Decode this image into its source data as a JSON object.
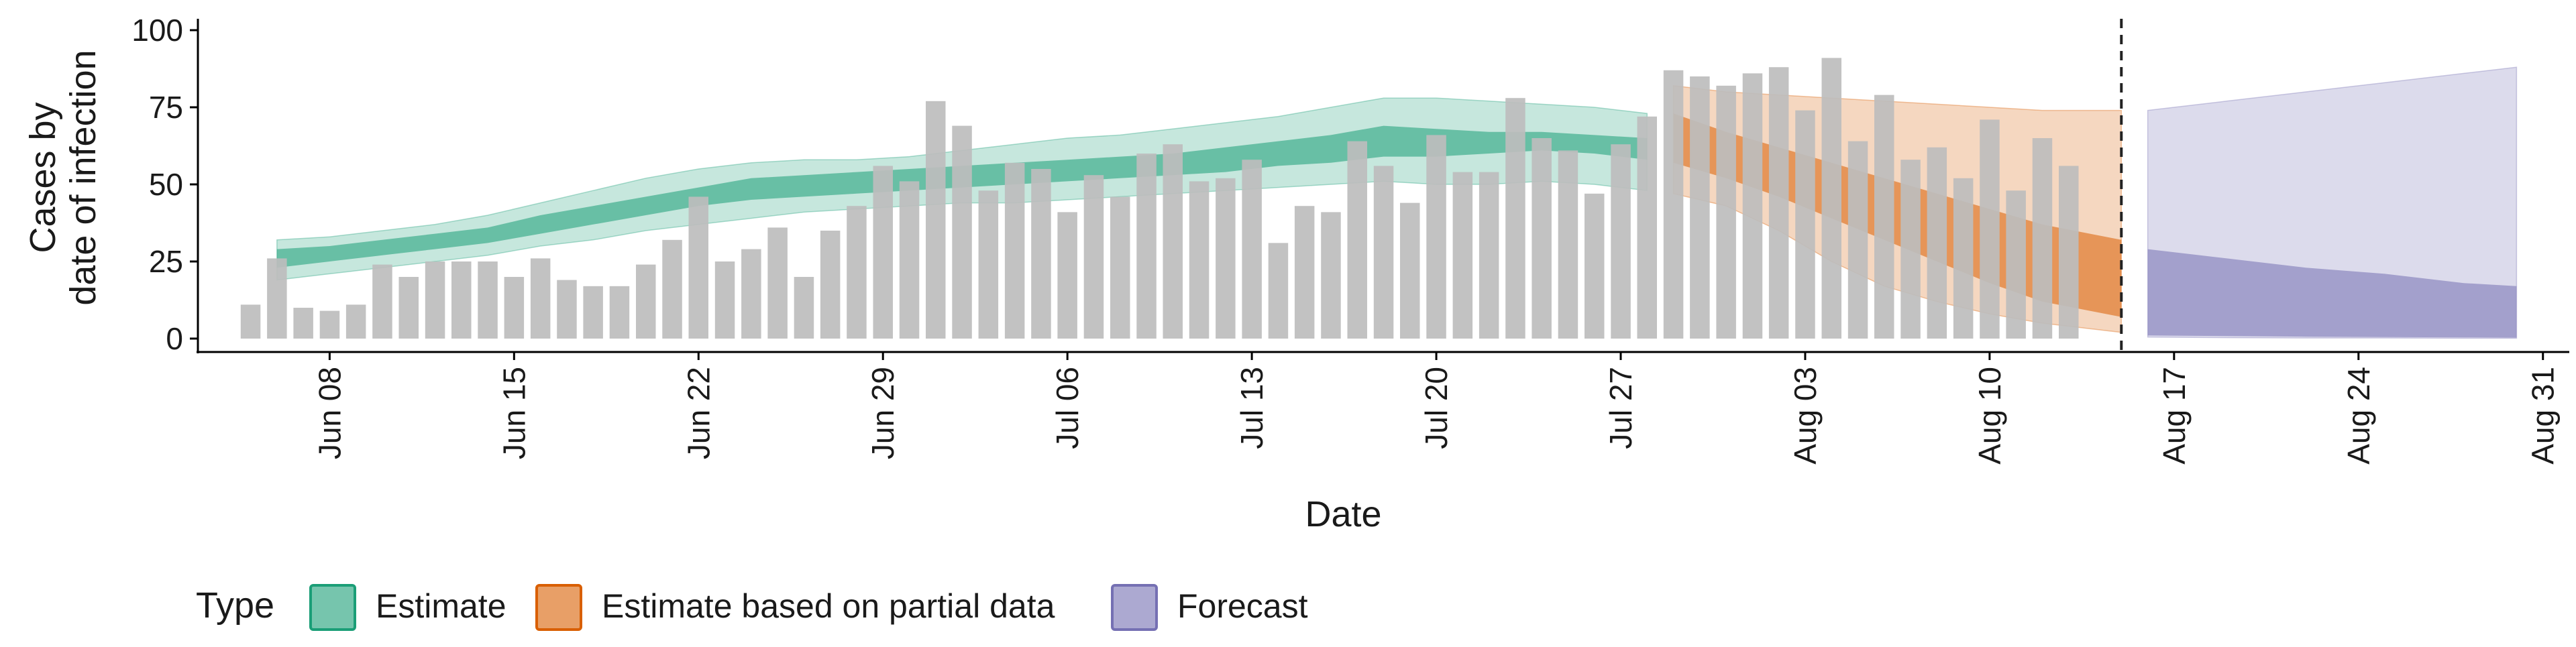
{
  "chart_data": {
    "type": "bar",
    "xlabel": "Date",
    "ylabel_lines": [
      "Cases by",
      "date of infection"
    ],
    "ylim": [
      0,
      100
    ],
    "y_ticks": [
      0,
      25,
      50,
      75,
      100
    ],
    "x_range": [
      "2021-06-03",
      "2021-09-01"
    ],
    "x_ticks": [
      {
        "date": "2021-06-08",
        "label": "Jun 08"
      },
      {
        "date": "2021-06-15",
        "label": "Jun 15"
      },
      {
        "date": "2021-06-22",
        "label": "Jun 22"
      },
      {
        "date": "2021-06-29",
        "label": "Jun 29"
      },
      {
        "date": "2021-07-06",
        "label": "Jul 06"
      },
      {
        "date": "2021-07-13",
        "label": "Jul 13"
      },
      {
        "date": "2021-07-20",
        "label": "Jul 20"
      },
      {
        "date": "2021-07-27",
        "label": "Jul 27"
      },
      {
        "date": "2021-08-03",
        "label": "Aug 03"
      },
      {
        "date": "2021-08-10",
        "label": "Aug 10"
      },
      {
        "date": "2021-08-17",
        "label": "Aug 17"
      },
      {
        "date": "2021-08-24",
        "label": "Aug 24"
      },
      {
        "date": "2021-08-31",
        "label": "Aug 31"
      }
    ],
    "forecast_line_date": "2021-08-15",
    "bars": {
      "start_date": "2021-06-05",
      "color": "#bdbdbd",
      "values": [
        11,
        26,
        10,
        9,
        11,
        24,
        20,
        25,
        25,
        25,
        20,
        26,
        19,
        17,
        17,
        24,
        32,
        46,
        25,
        29,
        36,
        20,
        35,
        43,
        56,
        51,
        77,
        69,
        48,
        57,
        55,
        41,
        53,
        46,
        60,
        63,
        51,
        52,
        58,
        31,
        43,
        41,
        64,
        56,
        44,
        66,
        54,
        54,
        78,
        65,
        61,
        47,
        63,
        72,
        87,
        85,
        82,
        86,
        88,
        74,
        91,
        64,
        79,
        58,
        62,
        52,
        71,
        48,
        65,
        56
      ]
    },
    "legend": {
      "title": "Type",
      "position": "bottom",
      "items": [
        {
          "label": "Estimate",
          "color": "#1b9e77"
        },
        {
          "label": "Estimate based on partial data",
          "color": "#d95f02"
        },
        {
          "label": "Forecast",
          "color": "#7570b3"
        }
      ]
    },
    "bands": [
      {
        "type": "Estimate",
        "color": "#1b9e77",
        "dates": [
          "2021-06-06",
          "2021-06-08",
          "2021-06-10",
          "2021-06-12",
          "2021-06-14",
          "2021-06-16",
          "2021-06-18",
          "2021-06-20",
          "2021-06-22",
          "2021-06-24",
          "2021-06-26",
          "2021-06-28",
          "2021-06-30",
          "2021-07-02",
          "2021-07-04",
          "2021-07-06",
          "2021-07-08",
          "2021-07-10",
          "2021-07-12",
          "2021-07-14",
          "2021-07-16",
          "2021-07-18",
          "2021-07-20",
          "2021-07-22",
          "2021-07-24",
          "2021-07-26",
          "2021-07-28"
        ],
        "lower90": [
          19,
          21,
          23,
          25,
          27,
          30,
          32,
          35,
          37,
          39,
          41,
          42,
          43,
          44,
          44,
          45,
          46,
          47,
          48,
          49,
          50,
          51,
          50,
          50,
          51,
          50,
          48
        ],
        "upper90": [
          32,
          33,
          35,
          37,
          40,
          44,
          48,
          52,
          55,
          57,
          58,
          58,
          59,
          61,
          63,
          65,
          66,
          68,
          70,
          72,
          75,
          78,
          78,
          77,
          76,
          75,
          73
        ],
        "lower50": [
          23,
          25,
          27,
          29,
          31,
          34,
          37,
          40,
          43,
          45,
          46,
          47,
          48,
          49,
          50,
          51,
          52,
          53,
          54,
          56,
          57,
          59,
          59,
          60,
          61,
          60,
          58
        ],
        "upper50": [
          29,
          30,
          32,
          34,
          36,
          40,
          43,
          46,
          49,
          52,
          53,
          54,
          55,
          56,
          57,
          58,
          59,
          60,
          62,
          64,
          66,
          69,
          68,
          67,
          67,
          66,
          65
        ]
      },
      {
        "type": "Estimate based on partial data",
        "color": "#d95f02",
        "dates": [
          "2021-07-29",
          "2021-07-31",
          "2021-08-02",
          "2021-08-04",
          "2021-08-06",
          "2021-08-08",
          "2021-08-10",
          "2021-08-12",
          "2021-08-15"
        ],
        "lower90": [
          47,
          43,
          35,
          25,
          17,
          12,
          8,
          5,
          2
        ],
        "upper90": [
          82,
          80,
          79,
          78,
          77,
          76,
          75,
          74,
          74
        ],
        "lower50": [
          57,
          52,
          46,
          39,
          32,
          25,
          18,
          12,
          7
        ],
        "upper50": [
          73,
          67,
          62,
          57,
          52,
          47,
          42,
          37,
          32
        ]
      },
      {
        "type": "Forecast",
        "color": "#7570b3",
        "dates": [
          "2021-08-16",
          "2021-08-19",
          "2021-08-22",
          "2021-08-25",
          "2021-08-28",
          "2021-08-30"
        ],
        "lower90": [
          0.5,
          0.3,
          0.2,
          0.2,
          0.1,
          0.1
        ],
        "upper90": [
          74,
          77,
          80,
          83,
          86,
          88
        ],
        "lower50": [
          1,
          0.8,
          0.6,
          0.5,
          0.4,
          0.3
        ],
        "upper50": [
          29,
          26,
          23,
          21,
          18,
          17
        ]
      }
    ]
  }
}
